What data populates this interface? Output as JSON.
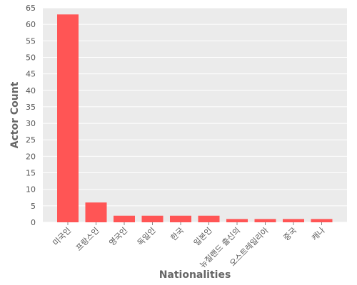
{
  "chart_data": {
    "type": "bar",
    "title": "",
    "xlabel": "Nationalities",
    "ylabel": "Actor Count",
    "ylim": [
      0,
      65
    ],
    "yticks": [
      0,
      5,
      10,
      15,
      20,
      25,
      30,
      35,
      40,
      45,
      50,
      55,
      60,
      65
    ],
    "categories": [
      "미국인",
      "프랑스인",
      "영국인",
      "독일인",
      "한국",
      "일본인",
      "뉴질랜드 출신의",
      "오스트레일리아",
      "중국",
      "캐나"
    ],
    "values": [
      63,
      6,
      2,
      2,
      2,
      2,
      1,
      1,
      1,
      1
    ],
    "grid": true,
    "legend": "none",
    "colors": {
      "bar": "#ff5555",
      "plot_background": "#ebebeb",
      "grid": "#ffffff"
    }
  }
}
